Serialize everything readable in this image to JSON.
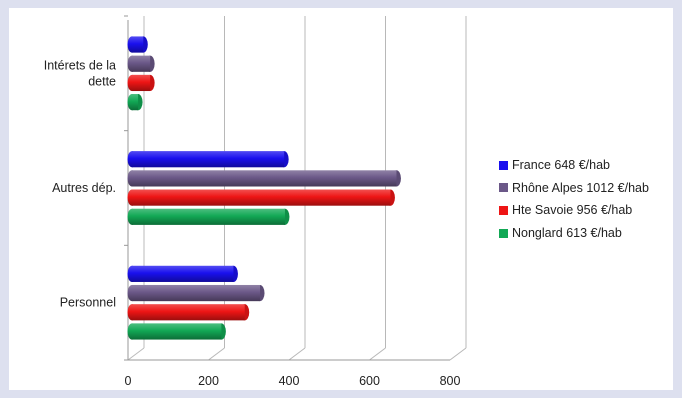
{
  "chart_data": {
    "type": "bar",
    "orientation": "horizontal",
    "three_d": true,
    "categories": [
      "Intérets de la dette",
      "Autres dép.",
      "Personnel"
    ],
    "category_lines": [
      [
        "Intérets de la",
        "dette"
      ],
      [
        "Autres dép."
      ],
      [
        "Personnel"
      ]
    ],
    "series": [
      {
        "name": "France 648 €/hab",
        "color": "#1a10ee",
        "values": [
          38,
          388,
          262
        ]
      },
      {
        "name": "Rhône Alpes 1012 €/hab",
        "color": "#6b5888",
        "values": [
          55,
          667,
          328
        ]
      },
      {
        "name": "Hte Savoie 956 €/hab",
        "color": "#ee1515",
        "values": [
          55,
          652,
          290
        ]
      },
      {
        "name": "Nonglard 613 €/hab",
        "color": "#12a855",
        "values": [
          25,
          390,
          232
        ]
      }
    ],
    "xlim": [
      0,
      800
    ],
    "xticks": [
      0,
      200,
      400,
      600,
      800
    ],
    "grid": true,
    "legend_position": "right"
  }
}
